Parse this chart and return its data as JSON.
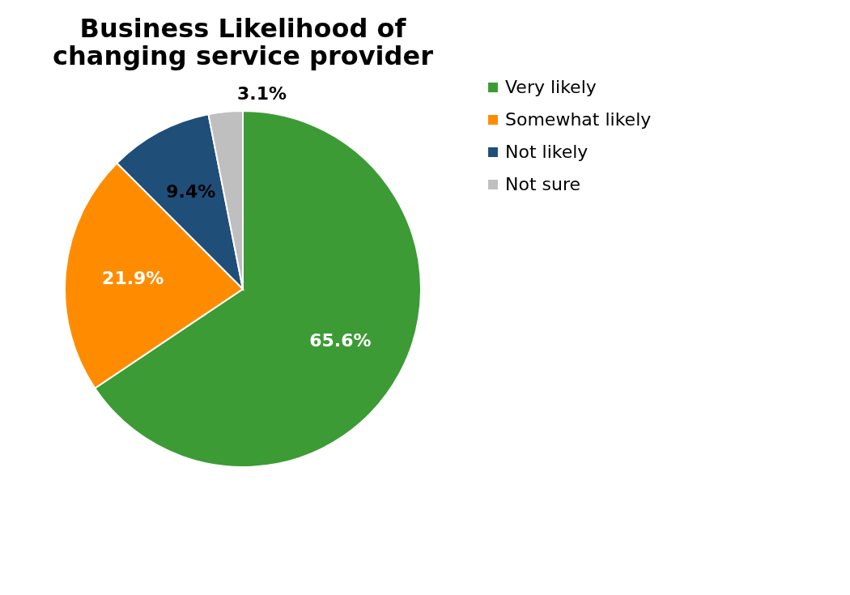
{
  "chart_data": {
    "type": "pie",
    "title": "Business Likelihood of changing service provider",
    "categories": [
      "Very likely",
      "Somewhat likely",
      "Not likely",
      "Not sure"
    ],
    "values": [
      65.6,
      21.9,
      9.4,
      3.1
    ],
    "colors": [
      "#3c9b35",
      "#ff8c00",
      "#1f4e79",
      "#bfbfbf"
    ],
    "value_labels": [
      "65.6%",
      "21.9%",
      "9.4%",
      "3.1%"
    ],
    "legend": "right"
  }
}
